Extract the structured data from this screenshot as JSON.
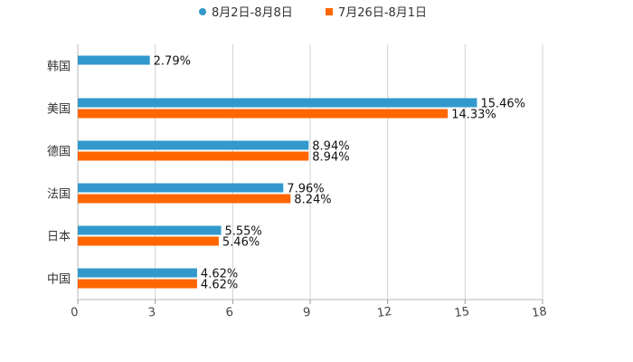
{
  "chart_data": {
    "type": "bar",
    "orientation": "horizontal",
    "title": "",
    "xlabel": "",
    "ylabel": "",
    "xlim": [
      0,
      18
    ],
    "xticks": [
      0,
      3,
      6,
      9,
      12,
      15,
      18
    ],
    "grid": "vertical",
    "legend": "top-center",
    "categories": [
      "韩国",
      "美国",
      "德国",
      "法国",
      "日本",
      "中国"
    ],
    "series": [
      {
        "name": "8月2日-8月8日",
        "color": "#3399CC",
        "values": [
          2.79,
          15.46,
          8.94,
          7.96,
          5.55,
          4.62
        ],
        "labels": [
          "2.79%",
          "15.46%",
          "8.94%",
          "7.96%",
          "5.55%",
          "4.62%"
        ]
      },
      {
        "name": "7月26日-8月1日",
        "color": "#FF6600",
        "values": [
          null,
          14.33,
          8.94,
          8.24,
          5.46,
          4.62
        ],
        "labels": [
          "",
          "14.33%",
          "8.94%",
          "8.24%",
          "5.46%",
          "4.62%"
        ]
      }
    ]
  }
}
